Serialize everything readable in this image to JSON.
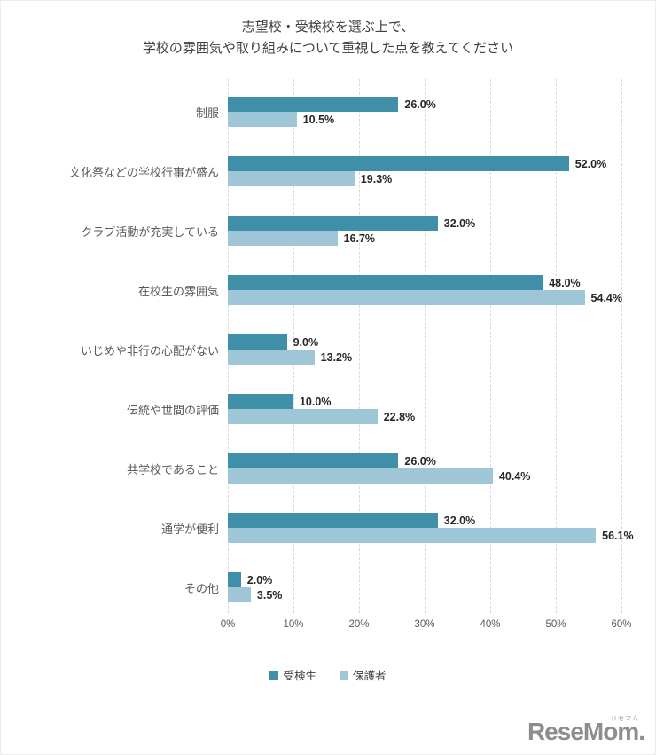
{
  "title": {
    "line1": "志望校・受検校を選ぶ上で、",
    "line2": "学校の雰囲気や取り組みについて重視した点を教えてください"
  },
  "chart_data": {
    "type": "bar",
    "orientation": "horizontal",
    "title": "志望校・受検校を選ぶ上で、学校の雰囲気や取り組みについて重視した点を教えてください",
    "categories": [
      "制服",
      "文化祭などの学校行事が盛ん",
      "クラブ活動が充実している",
      "在校生の雰囲気",
      "いじめや非行の心配がない",
      "伝統や世間の評価",
      "共学校であること",
      "通学が便利",
      "その他"
    ],
    "series": [
      {
        "name": "受検生",
        "color": "#3f8fa8",
        "values": [
          26.0,
          52.0,
          32.0,
          48.0,
          9.0,
          10.0,
          26.0,
          32.0,
          2.0
        ]
      },
      {
        "name": "保護者",
        "color": "#9fc6d6",
        "values": [
          10.5,
          19.3,
          16.7,
          54.4,
          13.2,
          22.8,
          40.4,
          56.1,
          3.5
        ]
      }
    ],
    "value_suffix": "%",
    "value_decimals": 1,
    "xlim": [
      0,
      60
    ],
    "x_ticks": [
      "0%",
      "10%",
      "20%",
      "30%",
      "40%",
      "50%",
      "60%"
    ],
    "grid": "vertical-dashed",
    "legend_position": "bottom"
  },
  "colors": {
    "series_dark": "#3f8fa8",
    "series_light": "#9fc6d6",
    "gridline": "#d9d9d9",
    "title_text": "#404040",
    "category_text": "#595959",
    "value_text": "#262626",
    "logo_gray": "#8d8d8d"
  },
  "logo": {
    "text": "ReseMom.",
    "ruby": "リセマム"
  }
}
